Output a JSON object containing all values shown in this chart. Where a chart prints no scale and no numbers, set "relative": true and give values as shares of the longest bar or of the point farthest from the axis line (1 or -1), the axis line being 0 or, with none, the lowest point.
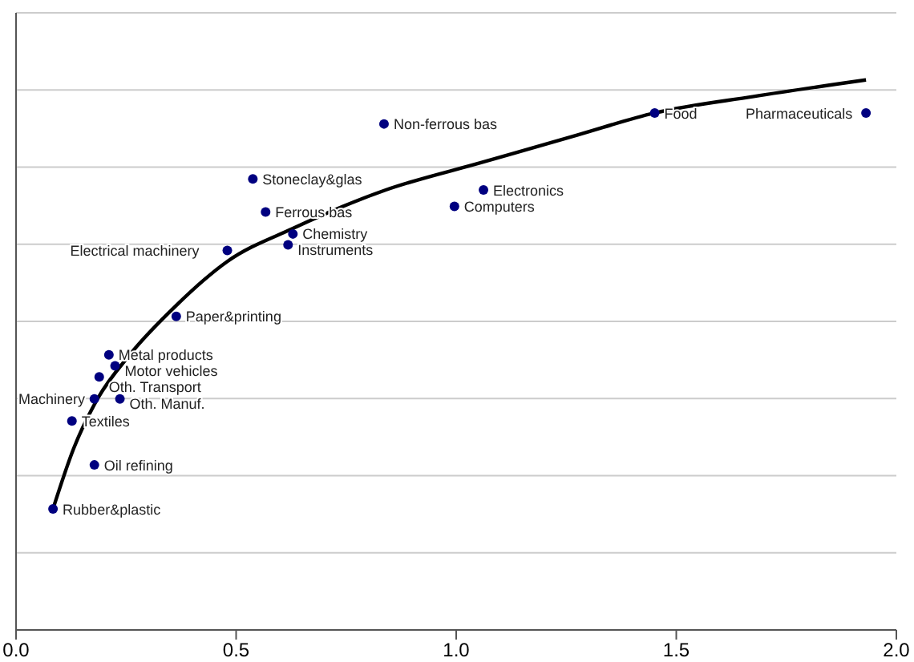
{
  "chart_data": {
    "type": "scatter",
    "relative": true,
    "xlim": [
      0,
      2
    ],
    "xticks": [
      {
        "value": 0,
        "label": "0.0"
      },
      {
        "value": 0.5,
        "label": "0.5"
      },
      {
        "value": 1,
        "label": "1.0"
      },
      {
        "value": 1.5,
        "label": "1.5"
      },
      {
        "value": 2,
        "label": "2.0"
      }
    ],
    "grid": "y",
    "marker": "circle",
    "series": [
      {
        "type": "scatter",
        "color": "#000080",
        "x": [
          0.084,
          0.178,
          0.127,
          0.178,
          0.236,
          0.189,
          0.225,
          0.211,
          0.364,
          0.48,
          0.618,
          0.629,
          0.567,
          0.538,
          0.836,
          0.996,
          1.062,
          1.451,
          1.931
        ],
        "values": [
          0.22,
          0.3,
          0.38,
          0.42,
          0.42,
          0.46,
          0.48,
          0.5,
          0.57,
          0.69,
          0.7,
          0.72,
          0.76,
          0.82,
          0.92,
          0.77,
          0.8,
          0.94,
          0.94
        ]
      },
      {
        "type": "line",
        "color": "#000000",
        "marker": "none",
        "line_style": "solid",
        "x": [
          0.084,
          0.131,
          0.185,
          0.258,
          0.364,
          0.48,
          0.629,
          0.84,
          1.058,
          1.276,
          1.451,
          1.676,
          1.931
        ],
        "values": [
          0.22,
          0.33,
          0.42,
          0.5,
          0.59,
          0.67,
          0.73,
          0.8,
          0.85,
          0.9,
          0.94,
          0.97,
          1.0
        ]
      }
    ],
    "annotations": [
      {
        "text": "Rubber&plastic",
        "x": 0.084,
        "y": 0.22
      },
      {
        "text": "Oil refining",
        "x": 0.178,
        "y": 0.3
      },
      {
        "text": "Textiles",
        "x": 0.127,
        "y": 0.38
      },
      {
        "text": "Machinery",
        "x": 0.178,
        "y": 0.42
      },
      {
        "text": "Oth. Manuf.",
        "x": 0.236,
        "y": 0.42
      },
      {
        "text": "Oth. Transport",
        "x": 0.189,
        "y": 0.46
      },
      {
        "text": "Motor vehicles",
        "x": 0.225,
        "y": 0.48
      },
      {
        "text": "Metal products",
        "x": 0.211,
        "y": 0.5
      },
      {
        "text": "Paper&printing",
        "x": 0.364,
        "y": 0.57
      },
      {
        "text": "Electrical machinery",
        "x": 0.48,
        "y": 0.69
      },
      {
        "text": "Instruments",
        "x": 0.618,
        "y": 0.7
      },
      {
        "text": "Chemistry",
        "x": 0.629,
        "y": 0.72
      },
      {
        "text": "Ferrous bas",
        "x": 0.567,
        "y": 0.76
      },
      {
        "text": "Stoneclay&glas",
        "x": 0.538,
        "y": 0.82
      },
      {
        "text": "Non-ferrous bas",
        "x": 0.836,
        "y": 0.92
      },
      {
        "text": "Computers",
        "x": 0.996,
        "y": 0.77
      },
      {
        "text": "Electronics",
        "x": 1.062,
        "y": 0.8
      },
      {
        "text": "Food",
        "x": 1.451,
        "y": 0.94
      },
      {
        "text": "Pharmaceuticals",
        "x": 1.931,
        "y": 0.94
      }
    ]
  }
}
